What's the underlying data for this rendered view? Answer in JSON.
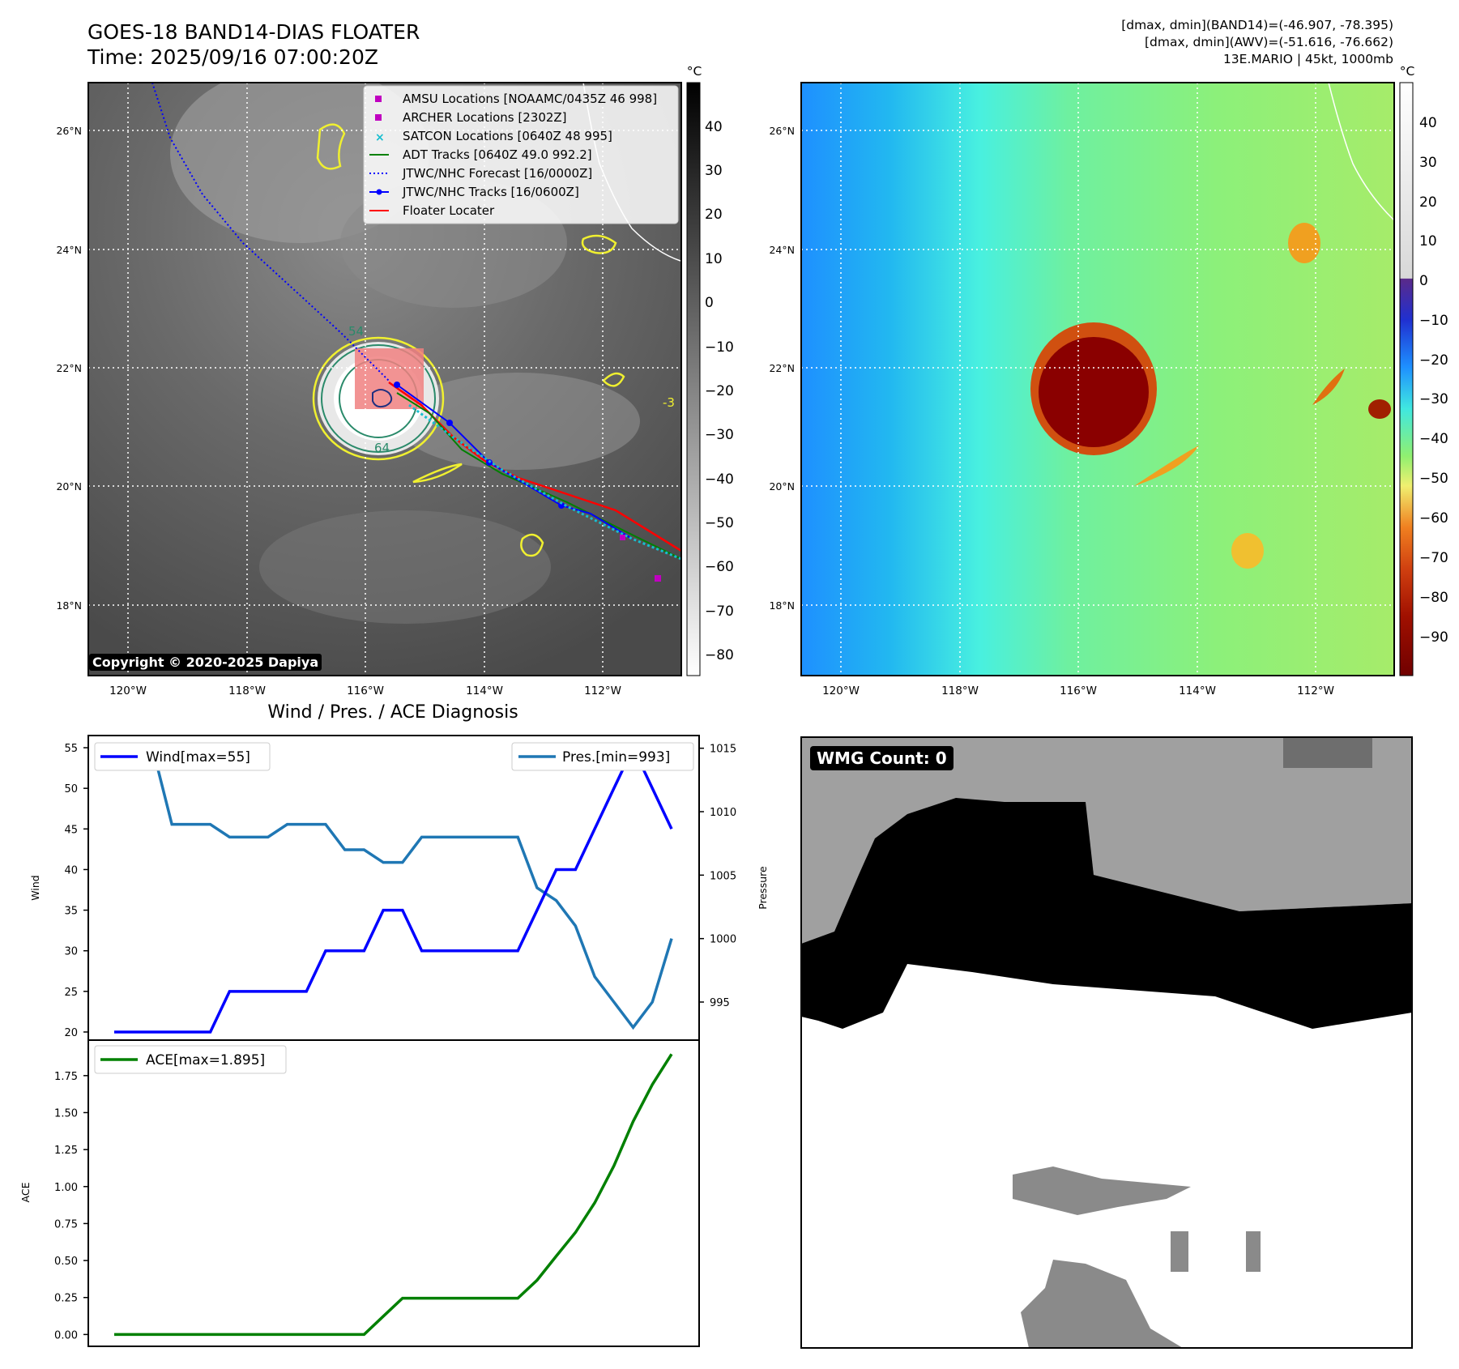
{
  "header": {
    "title_line1": "GOES-18 BAND14-DIAS FLOATER",
    "title_line2": "Time: 2025/09/16 07:00:20Z",
    "info_line1": "[dmax, dmin](BAND14)=(-46.907, -78.395)",
    "info_line2": "[dmax, dmin](AWV)=(-51.616, -76.662)",
    "info_line3": "13E.MARIO | 45kt, 1000mb"
  },
  "map": {
    "lat_labels": [
      "26°N",
      "24°N",
      "22°N",
      "20°N",
      "18°N"
    ],
    "lon_labels": [
      "120°W",
      "118°W",
      "116°W",
      "114°W",
      "112°W"
    ],
    "copyright": "Copyright © 2020-2025 Dapiya",
    "contour_labels": [
      "54",
      "64",
      "-3"
    ],
    "legend": [
      {
        "label": "AMSU Locations [NOAAMC/0435Z 46 998]",
        "color": "#c000c0",
        "marker": "square"
      },
      {
        "label": "ARCHER Locations [2302Z]",
        "color": "#c000c0",
        "marker": "square"
      },
      {
        "label": "SATCON Locations [0640Z 48 995]",
        "color": "#17becf",
        "marker": "x"
      },
      {
        "label": "ADT Tracks [0640Z 49.0 992.2]",
        "color": "#008000",
        "marker": "line"
      },
      {
        "label": "JTWC/NHC Forecast [16/0000Z]",
        "color": "#0000ff",
        "marker": "dotted"
      },
      {
        "label": "JTWC/NHC Tracks [16/0600Z]",
        "color": "#0000ff",
        "marker": "line-dot"
      },
      {
        "label": "Floater Locater",
        "color": "#ff0000",
        "marker": "line"
      }
    ]
  },
  "colorbar_left": {
    "unit": "°C",
    "ticks": [
      "40",
      "30",
      "20",
      "10",
      "0",
      "−10",
      "−20",
      "−30",
      "−40",
      "−50",
      "−60",
      "−70",
      "−80"
    ]
  },
  "colorbar_right": {
    "unit": "°C",
    "ticks": [
      "40",
      "30",
      "20",
      "10",
      "0",
      "−10",
      "−20",
      "−30",
      "−40",
      "−50",
      "−60",
      "−70",
      "−80",
      "−90"
    ]
  },
  "wmg": {
    "badge": "WMG Count: 0"
  },
  "chart_data": [
    {
      "type": "line",
      "title": "Wind / Pres. / ACE Diagnosis",
      "ylabel": "Wind",
      "y2label": "Pressure",
      "ylim": [
        19,
        56.5
      ],
      "y2lim": [
        992,
        1016
      ],
      "yticks": [
        "20",
        "25",
        "30",
        "35",
        "40",
        "45",
        "50",
        "55"
      ],
      "y2ticks": [
        "995",
        "1000",
        "1005",
        "1010",
        "1015"
      ],
      "x": [
        0,
        1,
        2,
        3,
        4,
        5,
        6,
        7,
        8,
        9,
        10,
        11,
        12,
        13,
        14,
        15,
        16,
        17,
        18,
        19,
        20,
        21,
        22,
        23,
        24,
        25,
        26,
        27,
        28,
        29
      ],
      "series": [
        {
          "name": "Wind[max=55]",
          "axis": "left",
          "color": "#0000ff",
          "values": [
            20,
            20,
            20,
            20,
            20,
            20,
            25,
            25,
            25,
            25,
            25,
            30,
            30,
            30,
            35,
            35,
            30,
            30,
            30,
            30,
            30,
            30,
            35,
            40,
            40,
            45,
            50,
            55,
            50,
            45
          ]
        },
        {
          "name": "Pres.[min=993]",
          "axis": "right",
          "color": "#1f77b4",
          "values": [
            1015,
            1015,
            1015,
            1009,
            1009,
            1009,
            1008,
            1008,
            1008,
            1009,
            1009,
            1009,
            1007,
            1007,
            1006,
            1006,
            1008,
            1008,
            1008,
            1008,
            1008,
            1008,
            1004,
            1003,
            1001,
            997,
            995,
            993,
            995,
            1000
          ]
        }
      ]
    },
    {
      "type": "line",
      "ylabel": "ACE",
      "ylim": [
        -0.08,
        1.99
      ],
      "yticks": [
        "0.00",
        "0.25",
        "0.50",
        "0.75",
        "1.00",
        "1.25",
        "1.50",
        "1.75"
      ],
      "x": [
        0,
        1,
        2,
        3,
        4,
        5,
        6,
        7,
        8,
        9,
        10,
        11,
        12,
        13,
        14,
        15,
        16,
        17,
        18,
        19,
        20,
        21,
        22,
        23,
        24,
        25,
        26,
        27,
        28,
        29
      ],
      "series": [
        {
          "name": "ACE[max=1.895]",
          "color": "#008000",
          "values": [
            0,
            0,
            0,
            0,
            0,
            0,
            0,
            0,
            0,
            0,
            0,
            0,
            0,
            0,
            0.123,
            0.245,
            0.245,
            0.245,
            0.245,
            0.245,
            0.245,
            0.245,
            0.367,
            0.53,
            0.69,
            0.89,
            1.14,
            1.44,
            1.69,
            1.895
          ]
        }
      ]
    }
  ]
}
